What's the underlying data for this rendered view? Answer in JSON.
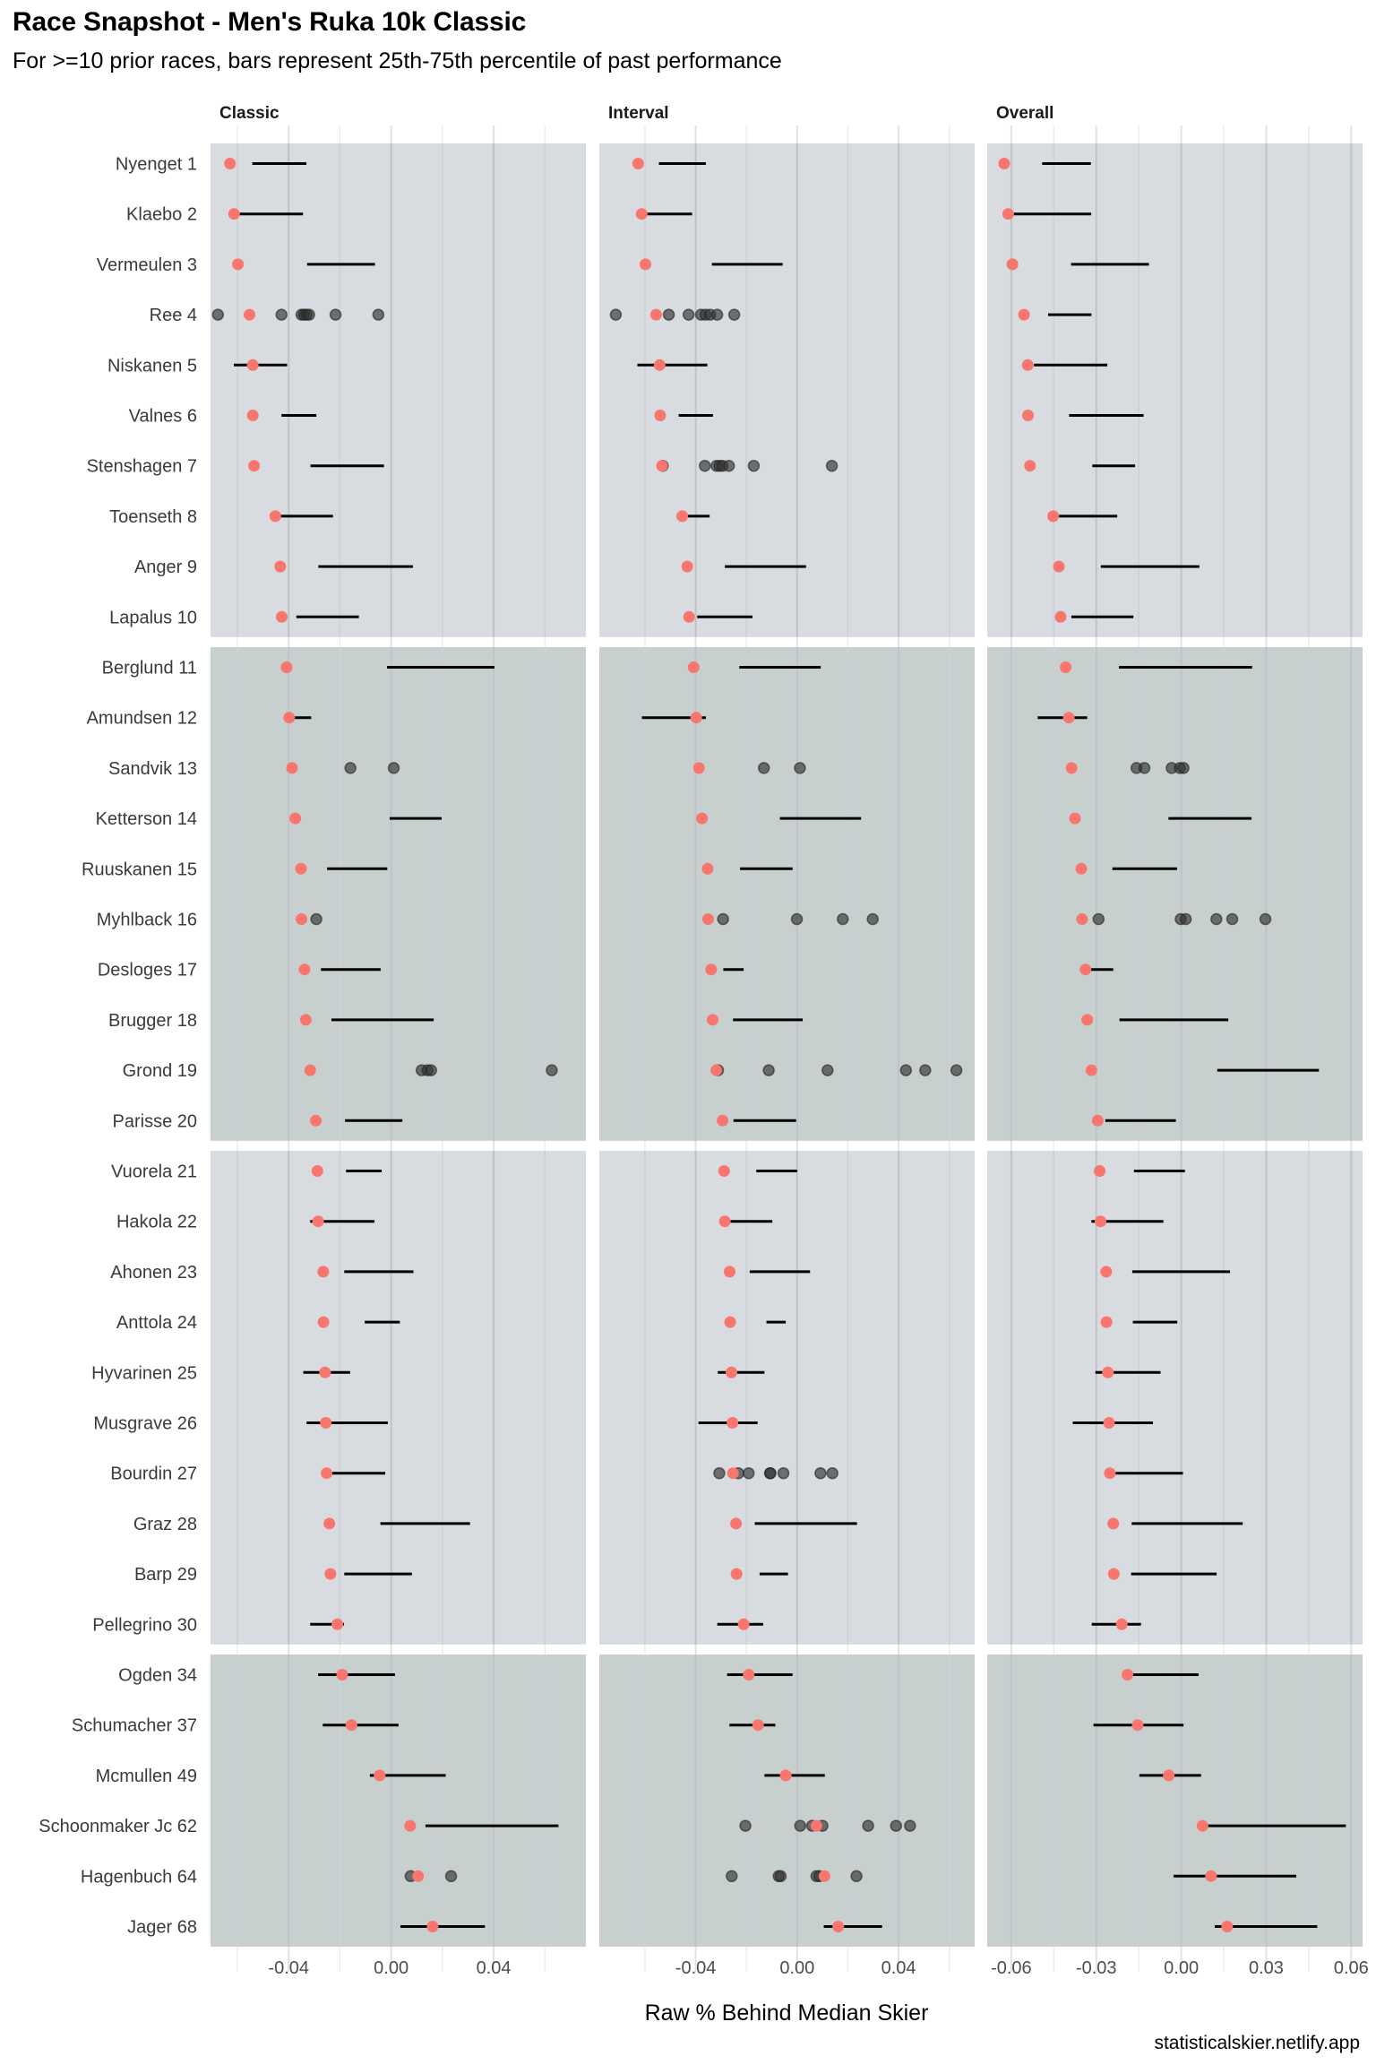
{
  "header": {
    "title": "Race Snapshot -  Men's Ruka 10k Classic",
    "subtitle": "For >=10 prior races, bars represent 25th-75th percentile of past performance"
  },
  "footer": {
    "caption": "statisticalskier.netlify.app"
  },
  "colors": {
    "band_a": "#d8dbe0",
    "band_b": "#c8d0cf",
    "current_point": "#f8766d",
    "past_point": "#333333",
    "bar": "#000000",
    "grid_major": "#bfc3c7",
    "grid_minor": "#cdd0d4"
  },
  "chart_data": {
    "type": "scatter",
    "title": "Race Snapshot -  Men's Ruka 10k Classic",
    "subtitle": "For >=10 prior races, bars represent 25th-75th percentile of past performance",
    "xlabel": "Raw % Behind Median Skier",
    "ylabel": "",
    "legend": "none",
    "grid": true,
    "facets": [
      {
        "name": "Classic",
        "xlim": [
          -0.0705,
          0.076
        ],
        "ticks": [
          -0.04,
          0.0,
          0.04
        ],
        "tick_labels": [
          "-0.04",
          "0.00",
          "0.04"
        ],
        "minor": [
          -0.06,
          -0.02,
          0.02,
          0.06
        ]
      },
      {
        "name": "Interval",
        "xlim": [
          -0.078,
          0.07
        ],
        "ticks": [
          -0.04,
          0.0,
          0.04
        ],
        "tick_labels": [
          "-0.04",
          "0.00",
          "0.04"
        ],
        "minor": [
          -0.06,
          -0.02,
          0.02,
          0.06
        ]
      },
      {
        "name": "Overall",
        "xlim": [
          -0.0685,
          0.064
        ],
        "ticks": [
          -0.06,
          -0.03,
          0.0,
          0.03,
          0.06
        ],
        "tick_labels": [
          "-0.06",
          "-0.03",
          "0.00",
          "0.03",
          "0.06"
        ],
        "minor": [
          -0.045,
          -0.015,
          0.015,
          0.045
        ]
      }
    ],
    "groups": [
      [
        0,
        9
      ],
      [
        10,
        19
      ],
      [
        20,
        29
      ],
      [
        30,
        35
      ]
    ],
    "skiers": [
      {
        "name": "Nyenget 1",
        "Classic": {
          "current": -0.0629,
          "bar": [
            -0.0542,
            -0.0331
          ]
        },
        "Interval": {
          "current": -0.0627,
          "bar": [
            -0.0545,
            -0.036
          ]
        },
        "Overall": {
          "current": -0.0625,
          "bar": [
            -0.0491,
            -0.0319
          ]
        }
      },
      {
        "name": "Klaebo 2",
        "Classic": {
          "current": -0.0613,
          "bar": [
            -0.0613,
            -0.0344
          ]
        },
        "Interval": {
          "current": -0.0613,
          "bar": [
            -0.0613,
            -0.0414
          ]
        },
        "Overall": {
          "current": -0.0611,
          "bar": [
            -0.0611,
            -0.0318
          ]
        }
      },
      {
        "name": "Vermeulen 3",
        "Classic": {
          "current": -0.0598,
          "bar": [
            -0.0328,
            -0.0063
          ]
        },
        "Interval": {
          "current": -0.0598,
          "bar": [
            -0.0336,
            -0.0057
          ]
        },
        "Overall": {
          "current": -0.0596,
          "bar": [
            -0.0389,
            -0.0114
          ]
        }
      },
      {
        "name": "Ree 4",
        "Classic": {
          "current": -0.0553,
          "past": [
            -0.0676,
            -0.0428,
            -0.035,
            -0.034,
            -0.033,
            -0.032,
            -0.0217,
            -0.005
          ]
        },
        "Interval": {
          "current": -0.0556,
          "past": [
            -0.0715,
            -0.0506,
            -0.0428,
            -0.0379,
            -0.0361,
            -0.0343,
            -0.0315,
            -0.0248
          ]
        },
        "Overall": {
          "current": -0.0555,
          "bar": [
            -0.047,
            -0.0317
          ]
        }
      },
      {
        "name": "Niskanen 5",
        "Classic": {
          "current": -0.054,
          "bar": [
            -0.0614,
            -0.0406
          ]
        },
        "Interval": {
          "current": -0.0542,
          "bar": [
            -0.063,
            -0.0354
          ]
        },
        "Overall": {
          "current": -0.0542,
          "bar": [
            -0.052,
            -0.0261
          ]
        }
      },
      {
        "name": "Valnes 6",
        "Classic": {
          "current": -0.054,
          "bar": [
            -0.0428,
            -0.0292
          ]
        },
        "Interval": {
          "current": -0.054,
          "bar": [
            -0.0467,
            -0.0332
          ]
        },
        "Overall": {
          "current": -0.0541,
          "bar": [
            -0.0396,
            -0.0133
          ]
        }
      },
      {
        "name": "Stenshagen 7",
        "Classic": {
          "current": -0.0535,
          "bar": [
            -0.0315,
            -0.0028
          ]
        },
        "Interval": {
          "current": -0.0533,
          "past": [
            -0.053,
            -0.0364,
            -0.0318,
            -0.0306,
            -0.0294,
            -0.0269,
            -0.0171,
            0.0137
          ]
        },
        "Overall": {
          "current": -0.0534,
          "bar": [
            -0.0314,
            -0.0163
          ]
        }
      },
      {
        "name": "Toenseth 8",
        "Classic": {
          "current": -0.0452,
          "bar": [
            -0.045,
            -0.0227
          ]
        },
        "Interval": {
          "current": -0.0453,
          "bar": [
            -0.0453,
            -0.0345
          ]
        },
        "Overall": {
          "current": -0.0452,
          "bar": [
            -0.0452,
            -0.0226
          ]
        }
      },
      {
        "name": "Anger 9",
        "Classic": {
          "current": -0.0433,
          "bar": [
            -0.0284,
            0.0085
          ]
        },
        "Interval": {
          "current": -0.0433,
          "bar": [
            -0.0285,
            0.0035
          ]
        },
        "Overall": {
          "current": -0.0432,
          "bar": [
            -0.0284,
            0.0064
          ]
        }
      },
      {
        "name": "Lapalus 10",
        "Classic": {
          "current": -0.0427,
          "bar": [
            -0.037,
            -0.0126
          ]
        },
        "Interval": {
          "current": -0.0426,
          "bar": [
            -0.0394,
            -0.0176
          ]
        },
        "Overall": {
          "current": -0.0426,
          "bar": [
            -0.0388,
            -0.0169
          ]
        }
      },
      {
        "name": "Berglund 11",
        "Classic": {
          "current": -0.0408,
          "bar": [
            -0.0016,
            0.0403
          ]
        },
        "Interval": {
          "current": -0.0408,
          "bar": [
            -0.0228,
            0.0093
          ]
        },
        "Overall": {
          "current": -0.0408,
          "bar": [
            -0.022,
            0.025
          ]
        }
      },
      {
        "name": "Amundsen 12",
        "Classic": {
          "current": -0.0398,
          "bar": [
            -0.0398,
            -0.0312
          ]
        },
        "Interval": {
          "current": -0.0398,
          "bar": [
            -0.0612,
            -0.036
          ]
        },
        "Overall": {
          "current": -0.0397,
          "bar": [
            -0.0507,
            -0.0332
          ]
        }
      },
      {
        "name": "Sandvik 13",
        "Classic": {
          "current": -0.0387,
          "past": [
            -0.0159,
            0.001
          ]
        },
        "Interval": {
          "current": -0.0387,
          "past": [
            -0.0131,
            0.0011
          ]
        },
        "Overall": {
          "current": -0.0387,
          "past": [
            -0.0158,
            -0.013,
            -0.0034,
            -0.0005,
            0.0008
          ]
        }
      },
      {
        "name": "Ketterson 14",
        "Classic": {
          "current": -0.0374,
          "bar": [
            -0.0006,
            0.0197
          ]
        },
        "Interval": {
          "current": -0.0375,
          "bar": [
            -0.0068,
            0.0252
          ]
        },
        "Overall": {
          "current": -0.0375,
          "bar": [
            -0.0045,
            0.0248
          ]
        }
      },
      {
        "name": "Ruuskanen 15",
        "Classic": {
          "current": -0.0352,
          "bar": [
            -0.025,
            -0.0015
          ]
        },
        "Interval": {
          "current": -0.0353,
          "bar": [
            -0.0225,
            -0.0018
          ]
        },
        "Overall": {
          "current": -0.0353,
          "bar": [
            -0.0243,
            -0.0015
          ]
        }
      },
      {
        "name": "Myhlback 16",
        "Classic": {
          "current": -0.035,
          "past": [
            -0.0292
          ]
        },
        "Interval": {
          "current": -0.0351,
          "past": [
            -0.0292,
            -0.0001,
            0.018,
            0.0298
          ]
        },
        "Overall": {
          "current": -0.035,
          "past": [
            -0.0292,
            -0.0002,
            0.0016,
            0.0124,
            0.018,
            0.0297
          ]
        }
      },
      {
        "name": "Desloges 17",
        "Classic": {
          "current": -0.0338,
          "bar": [
            -0.0274,
            -0.0041
          ]
        },
        "Interval": {
          "current": -0.0339,
          "bar": [
            -0.0291,
            -0.0211
          ]
        },
        "Overall": {
          "current": -0.0338,
          "bar": [
            -0.0338,
            -0.024
          ]
        }
      },
      {
        "name": "Brugger 18",
        "Classic": {
          "current": -0.0333,
          "bar": [
            -0.0233,
            0.0166
          ]
        },
        "Interval": {
          "current": -0.0333,
          "bar": [
            -0.0253,
            0.0022
          ]
        },
        "Overall": {
          "current": -0.0332,
          "bar": [
            -0.0218,
            0.0166
          ]
        }
      },
      {
        "name": "Grond 19",
        "Classic": {
          "current": -0.0316,
          "past": [
            0.0119,
            0.0142,
            0.0156,
            0.0627
          ]
        },
        "Interval": {
          "current": -0.0319,
          "past": [
            -0.0312,
            -0.0112,
            0.012,
            0.0429,
            0.0505,
            0.0628
          ]
        },
        "Overall": {
          "current": -0.0317,
          "bar": [
            0.0127,
            0.0486
          ]
        }
      },
      {
        "name": "Parisse 20",
        "Classic": {
          "current": -0.0294,
          "bar": [
            -0.018,
            0.0044
          ]
        },
        "Interval": {
          "current": -0.0294,
          "bar": [
            -0.0251,
            -0.0004
          ]
        },
        "Overall": {
          "current": -0.0295,
          "bar": [
            -0.0268,
            -0.0019
          ]
        }
      },
      {
        "name": "Vuorela 21",
        "Classic": {
          "current": -0.0288,
          "bar": [
            -0.0176,
            -0.0037
          ]
        },
        "Interval": {
          "current": -0.0288,
          "bar": [
            -0.0161,
            0.0
          ]
        },
        "Overall": {
          "current": -0.0288,
          "bar": [
            -0.0167,
            0.0013
          ]
        }
      },
      {
        "name": "Hakola 22",
        "Classic": {
          "current": -0.0285,
          "bar": [
            -0.0316,
            -0.0065
          ]
        },
        "Interval": {
          "current": -0.0285,
          "bar": [
            -0.0285,
            -0.0098
          ]
        },
        "Overall": {
          "current": -0.0285,
          "bar": [
            -0.0317,
            -0.0063
          ]
        }
      },
      {
        "name": "Ahonen 23",
        "Classic": {
          "current": -0.0265,
          "bar": [
            -0.0183,
            0.0087
          ]
        },
        "Interval": {
          "current": -0.0266,
          "bar": [
            -0.0187,
            0.0051
          ]
        },
        "Overall": {
          "current": -0.0265,
          "bar": [
            -0.0173,
            0.0172
          ]
        }
      },
      {
        "name": "Anttola 24",
        "Classic": {
          "current": -0.0264,
          "bar": [
            -0.0103,
            0.0034
          ]
        },
        "Interval": {
          "current": -0.0264,
          "bar": [
            -0.0121,
            -0.0045
          ]
        },
        "Overall": {
          "current": -0.0264,
          "bar": [
            -0.0171,
            -0.0014
          ]
        }
      },
      {
        "name": "Hyvarinen 25",
        "Classic": {
          "current": -0.0258,
          "bar": [
            -0.0343,
            -0.016
          ]
        },
        "Interval": {
          "current": -0.0259,
          "bar": [
            -0.0313,
            -0.0129
          ]
        },
        "Overall": {
          "current": -0.0259,
          "bar": [
            -0.0303,
            -0.0073
          ]
        }
      },
      {
        "name": "Musgrave 26",
        "Classic": {
          "current": -0.0255,
          "bar": [
            -0.033,
            -0.0013
          ]
        },
        "Interval": {
          "current": -0.0255,
          "bar": [
            -0.0389,
            -0.0156
          ]
        },
        "Overall": {
          "current": -0.0255,
          "bar": [
            -0.0383,
            -0.01
          ]
        }
      },
      {
        "name": "Bourdin 27",
        "Classic": {
          "current": -0.0252,
          "bar": [
            -0.0252,
            -0.0023
          ]
        },
        "Interval": {
          "current": -0.0253,
          "past": [
            -0.0307,
            -0.0232,
            -0.0191,
            -0.0107,
            -0.0105,
            -0.0054,
            0.0092,
            0.0139
          ]
        },
        "Overall": {
          "current": -0.0252,
          "bar": [
            -0.0252,
            0.0006
          ]
        }
      },
      {
        "name": "Graz 28",
        "Classic": {
          "current": -0.0241,
          "bar": [
            -0.0042,
            0.0308
          ]
        },
        "Interval": {
          "current": -0.0241,
          "bar": [
            -0.0167,
            0.0236
          ]
        },
        "Overall": {
          "current": -0.024,
          "bar": [
            -0.0175,
            0.0217
          ]
        }
      },
      {
        "name": "Barp 29",
        "Classic": {
          "current": -0.0237,
          "bar": [
            -0.0183,
            0.0081
          ]
        },
        "Interval": {
          "current": -0.0239,
          "bar": [
            -0.0148,
            -0.0036
          ]
        },
        "Overall": {
          "current": -0.0238,
          "bar": [
            -0.0177,
            0.0125
          ]
        }
      },
      {
        "name": "Pellegrino 30",
        "Classic": {
          "current": -0.021,
          "bar": [
            -0.0316,
            -0.0184
          ]
        },
        "Interval": {
          "current": -0.0211,
          "bar": [
            -0.0315,
            -0.0134
          ]
        },
        "Overall": {
          "current": -0.021,
          "bar": [
            -0.0316,
            -0.0142
          ]
        }
      },
      {
        "name": "Ogden 34",
        "Classic": {
          "current": -0.0191,
          "bar": [
            -0.0285,
            0.0015
          ]
        },
        "Interval": {
          "current": -0.0191,
          "bar": [
            -0.0276,
            -0.0018
          ]
        },
        "Overall": {
          "current": -0.019,
          "bar": [
            -0.019,
            0.0061
          ]
        }
      },
      {
        "name": "Schumacher 37",
        "Classic": {
          "current": -0.0155,
          "bar": [
            -0.0267,
            0.0029
          ]
        },
        "Interval": {
          "current": -0.0154,
          "bar": [
            -0.0267,
            -0.0086
          ]
        },
        "Overall": {
          "current": -0.0154,
          "bar": [
            -0.031,
            0.0008
          ]
        }
      },
      {
        "name": "Mcmullen 49",
        "Classic": {
          "current": -0.0045,
          "bar": [
            -0.0083,
            0.0213
          ]
        },
        "Interval": {
          "current": -0.0045,
          "bar": [
            -0.0129,
            0.0109
          ]
        },
        "Overall": {
          "current": -0.0044,
          "bar": [
            -0.0148,
            0.007
          ]
        }
      },
      {
        "name": "Schoonmaker Jc 62",
        "Classic": {
          "current": 0.0074,
          "bar": [
            0.0134,
            0.0653
          ]
        },
        "Interval": {
          "current": 0.0076,
          "past": [
            -0.0204,
            0.0012,
            0.0059,
            0.01,
            0.028,
            0.039,
            0.0445
          ]
        },
        "Overall": {
          "current": 0.0075,
          "bar": [
            0.0075,
            0.0581
          ]
        }
      },
      {
        "name": "Hagenbuch 64",
        "Classic": {
          "current": 0.0105,
          "past": [
            0.0076,
            0.0234
          ]
        },
        "Interval": {
          "current": 0.0108,
          "past": [
            -0.0258,
            -0.0073,
            -0.0065,
            0.0076,
            0.0088,
            0.0234
          ]
        },
        "Overall": {
          "current": 0.0105,
          "bar": [
            -0.0027,
            0.0406
          ]
        }
      },
      {
        "name": "Jager 68",
        "Classic": {
          "current": 0.0162,
          "bar": [
            0.0036,
            0.0366
          ]
        },
        "Interval": {
          "current": 0.0162,
          "bar": [
            0.0105,
            0.0335
          ]
        },
        "Overall": {
          "current": 0.0162,
          "bar": [
            0.0118,
            0.048
          ]
        }
      }
    ]
  }
}
